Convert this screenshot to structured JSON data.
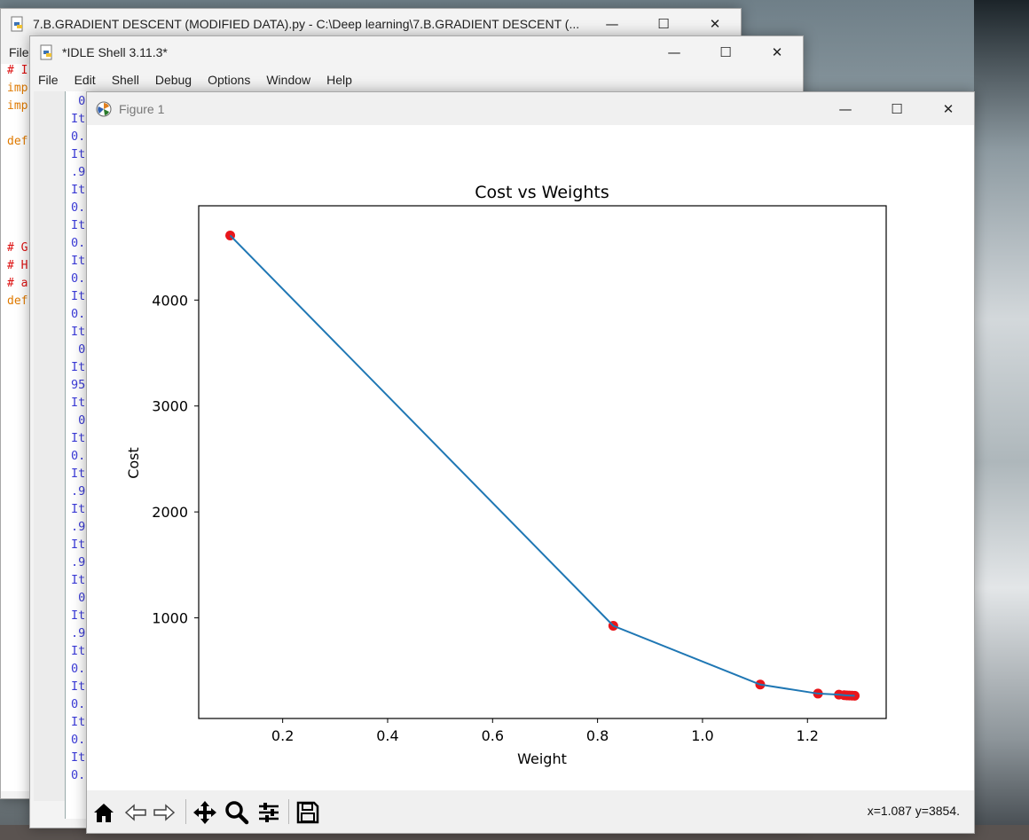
{
  "editor_window": {
    "title": "7.B.GRADIENT DESCENT (MODIFIED DATA).py - C:\\Deep learning\\7.B.GRADIENT DESCENT (...",
    "menu_first": "File",
    "code_lines": [
      {
        "text": "# I",
        "color": "#d11"
      },
      {
        "text": "imp",
        "color": "#e07a00"
      },
      {
        "text": "imp",
        "color": "#e07a00"
      },
      {
        "text": "",
        "color": "#000"
      },
      {
        "text": "def",
        "color": "#e07a00"
      },
      {
        "text": "",
        "color": "#000"
      },
      {
        "text": "",
        "color": "#000"
      },
      {
        "text": "",
        "color": "#000"
      },
      {
        "text": "",
        "color": "#000"
      },
      {
        "text": "",
        "color": "#000"
      },
      {
        "text": "# G",
        "color": "#d11"
      },
      {
        "text": "# H",
        "color": "#d11"
      },
      {
        "text": "# a",
        "color": "#d11"
      },
      {
        "text": "def",
        "color": "#e07a00"
      }
    ]
  },
  "shell_window": {
    "title": "*IDLE Shell 3.11.3*",
    "menu": [
      "File",
      "Edit",
      "Shell",
      "Debug",
      "Options",
      "Window",
      "Help"
    ],
    "lines": [
      " 0",
      "It",
      "0.",
      "It",
      ".9",
      "It",
      "0.",
      "It",
      "0.",
      "It",
      "0.",
      "It",
      "0.",
      "It",
      " 0",
      "It",
      "95",
      "It",
      " 0",
      "It",
      "0.",
      "It",
      ".9",
      "It",
      ".9",
      "It",
      ".9",
      "It",
      " 0",
      "It",
      ".9",
      "It",
      "0.",
      "It",
      "0.",
      "It",
      "0.",
      "It",
      "0."
    ]
  },
  "figure_window": {
    "title": "Figure 1",
    "coords_readout": "x=1.087 y=3854.",
    "toolbar": [
      "home-icon",
      "back-icon",
      "forward-icon",
      "pan-icon",
      "zoom-icon",
      "configure-icon",
      "save-icon"
    ]
  },
  "window_controls": {
    "minimize": "—",
    "maximize": "☐",
    "close": "✕"
  },
  "chart_data": {
    "type": "line",
    "title": "Cost vs Weights",
    "xlabel": "Weight",
    "ylabel": "Cost",
    "xlim": [
      0.04,
      1.35
    ],
    "ylim": [
      50,
      4890
    ],
    "xticks": [
      0.2,
      0.4,
      0.6,
      0.8,
      1.0,
      1.2
    ],
    "xtick_labels": [
      "0.2",
      "0.4",
      "0.6",
      "0.8",
      "1.0",
      "1.2"
    ],
    "yticks": [
      1000,
      2000,
      3000,
      4000
    ],
    "ytick_labels": [
      "1000",
      "2000",
      "3000",
      "4000"
    ],
    "grid": false,
    "series": [
      {
        "line_color": "#1f77b4",
        "marker_color": "#e8161b",
        "x": [
          0.1,
          0.83,
          1.11,
          1.22,
          1.26,
          1.27,
          1.275,
          1.28,
          1.285,
          1.29
        ],
        "y": [
          4610,
          925,
          370,
          285,
          275,
          270,
          268,
          267,
          266,
          265
        ]
      }
    ]
  }
}
